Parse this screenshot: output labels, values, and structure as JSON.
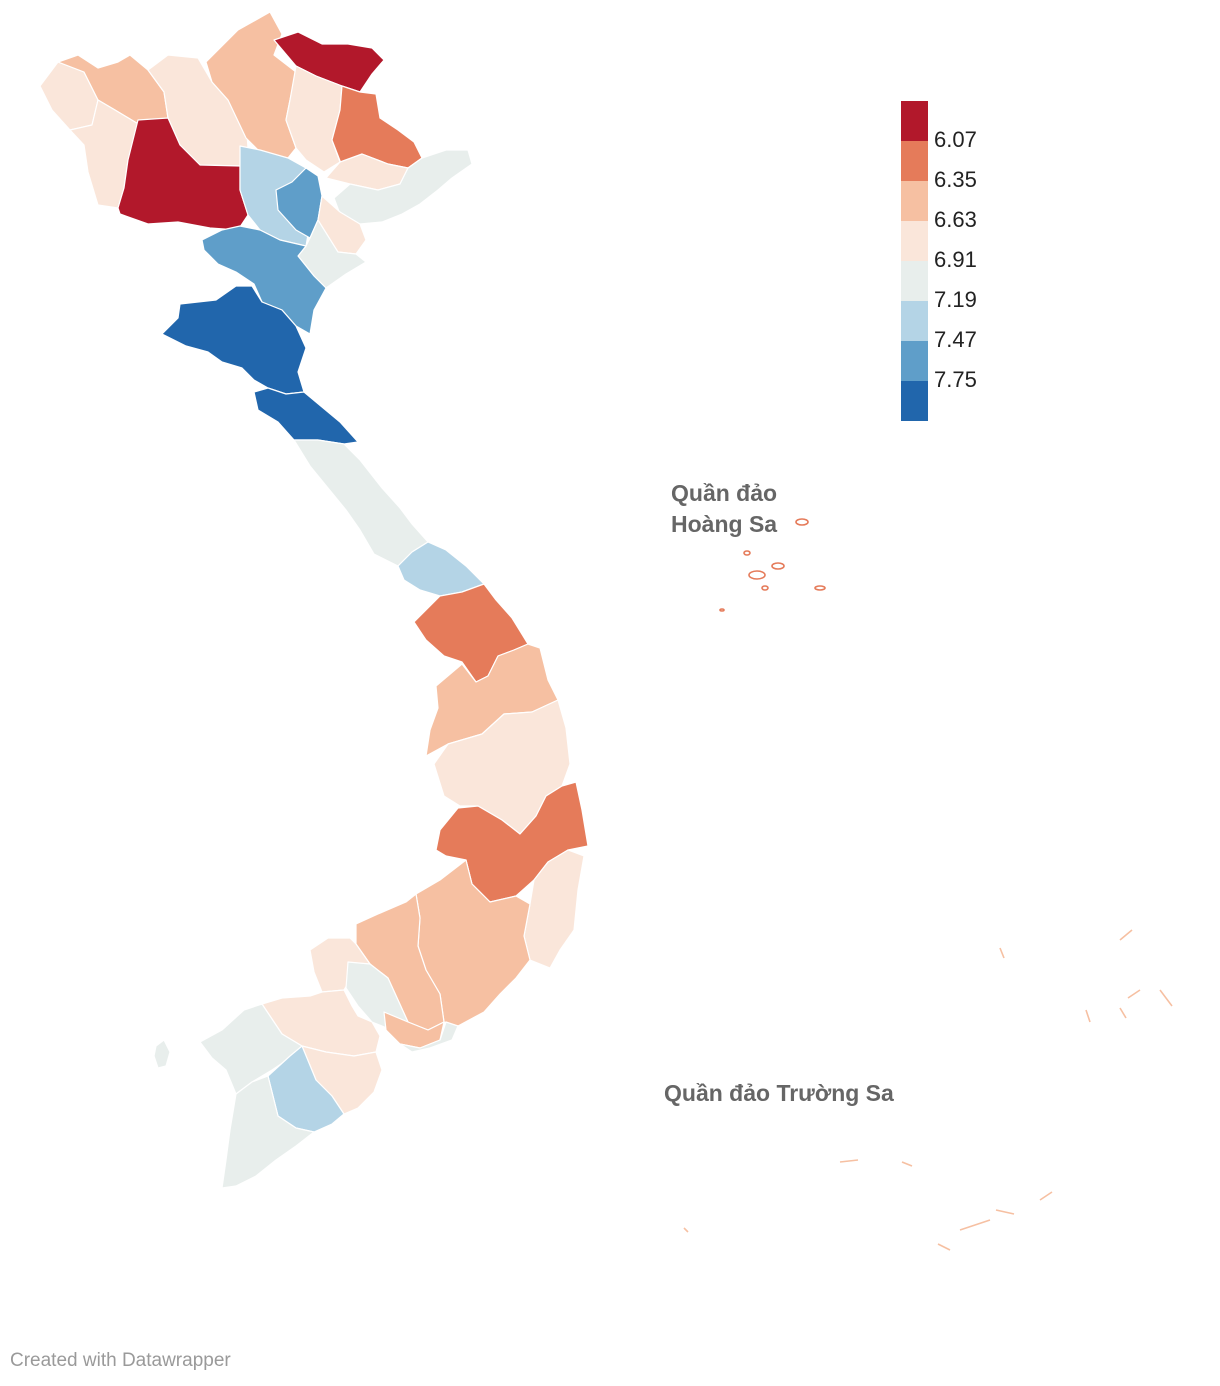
{
  "legend": {
    "colors": [
      "#b2182b",
      "#e57b5a",
      "#f6c0a2",
      "#fae6da",
      "#e8eeec",
      "#b4d4e6",
      "#5f9ec9",
      "#2166ac"
    ],
    "labels": [
      "6.07",
      "6.35",
      "6.63",
      "6.91",
      "7.19",
      "7.47",
      "7.75"
    ]
  },
  "labels": {
    "hoang_sa_line1": "Quần đảo",
    "hoang_sa_line2": "Hoàng Sa",
    "truong_sa": "Quần đảo Trường Sa"
  },
  "footer": {
    "credit": "Created with Datawrapper"
  },
  "colors": {
    "background": "#ffffff",
    "border": "#ffffff",
    "label": "#666666",
    "credit": "#9a9a9a"
  }
}
